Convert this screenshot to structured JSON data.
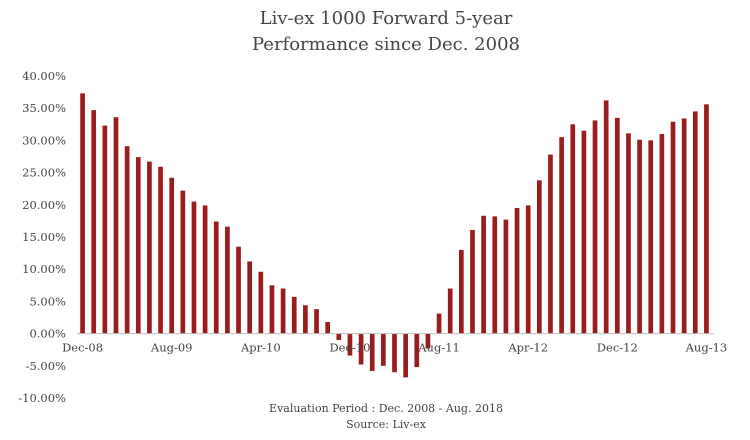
{
  "chart_data": {
    "type": "bar",
    "title_lines": [
      "Liv-ex 1000 Forward 5-year",
      "Performance since Dec. 2008"
    ],
    "footer_lines": [
      "Evaluation Period : Dec. 2008 - Aug. 2018",
      "Source: Liv-ex"
    ],
    "y_tick_labels": [
      "40.00%",
      "35.00%",
      "30.00%",
      "25.00%",
      "20.00%",
      "15.00%",
      "10.00%",
      "5.00%",
      "0.00%",
      "-5.00%",
      "-10.00%"
    ],
    "ylim": [
      -10,
      40
    ],
    "x_tick_labels": [
      {
        "label": "Dec-08",
        "index": 0
      },
      {
        "label": "Aug-09",
        "index": 8
      },
      {
        "label": "Apr-10",
        "index": 16
      },
      {
        "label": "Dec-10",
        "index": 24
      },
      {
        "label": "Aug-11",
        "index": 32
      },
      {
        "label": "Apr-12",
        "index": 40
      },
      {
        "label": "Dec-12",
        "index": 48
      },
      {
        "label": "Aug-13",
        "index": 56
      }
    ],
    "bar_color": "#9b1c1c",
    "grid": false,
    "values": [
      37.3,
      34.7,
      32.3,
      33.6,
      29.1,
      27.4,
      26.7,
      25.9,
      24.2,
      22.2,
      20.5,
      19.9,
      17.4,
      16.6,
      13.5,
      11.2,
      9.6,
      7.5,
      7.0,
      5.7,
      4.4,
      3.8,
      1.8,
      -1.0,
      -3.4,
      -4.8,
      -5.8,
      -5.0,
      -6.0,
      -6.8,
      -5.2,
      -2.3,
      3.1,
      7.0,
      13.0,
      16.1,
      18.3,
      18.2,
      17.7,
      19.5,
      19.9,
      23.8,
      27.8,
      30.5,
      32.5,
      31.5,
      33.1,
      36.2,
      33.5,
      31.1,
      30.1,
      30.0,
      31.0,
      32.9,
      33.4,
      34.5,
      35.6
    ]
  }
}
